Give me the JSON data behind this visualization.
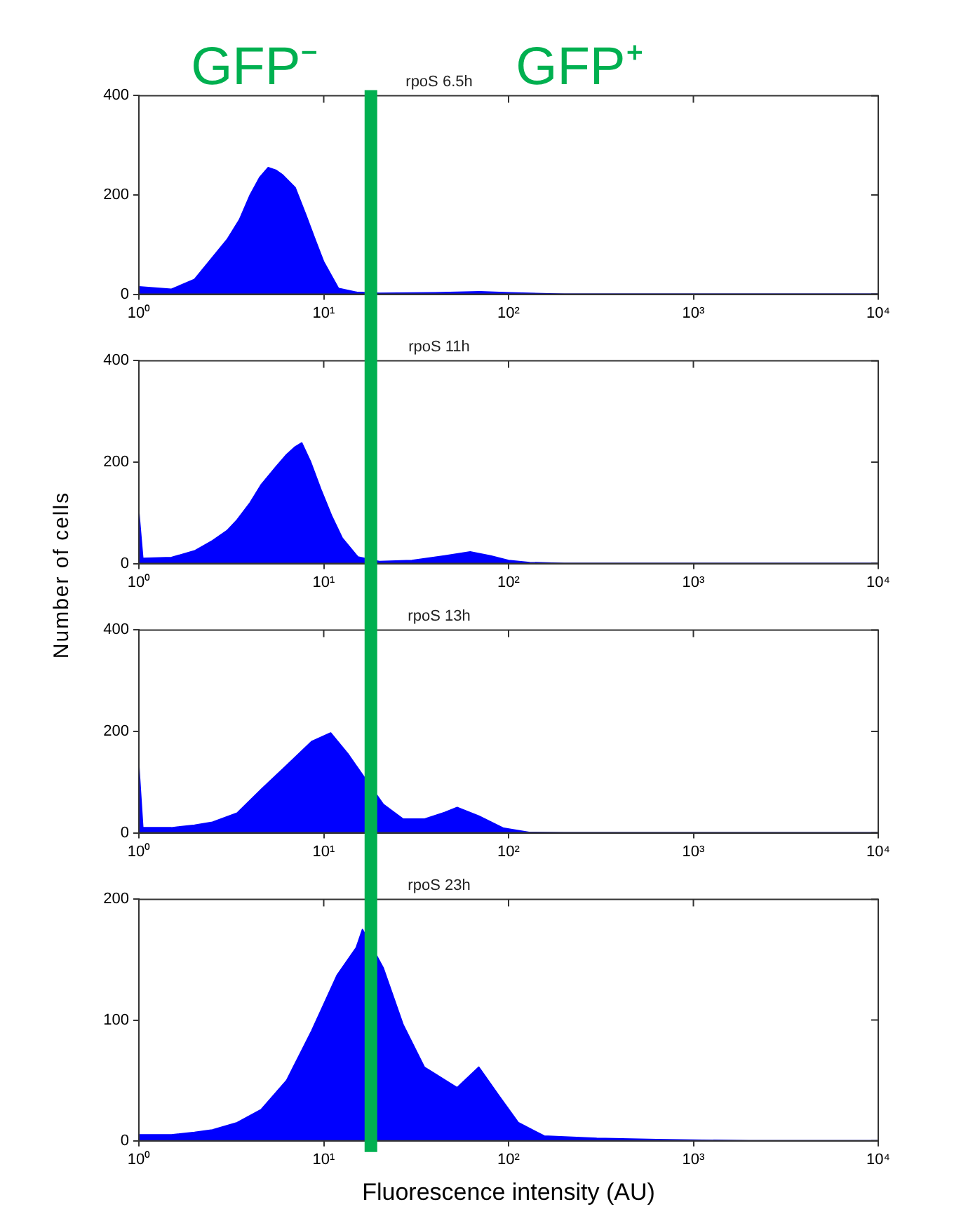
{
  "chart_data": [
    {
      "type": "area",
      "title": "rpoS 6.5h",
      "annotations": [
        "GFP⁻",
        "GFP⁺"
      ],
      "color": "#0000ff",
      "log": "x",
      "grid": false,
      "x": [
        1,
        1.5,
        2,
        2.5,
        3,
        3.5,
        4,
        4.5,
        5,
        5.5,
        6,
        7,
        8,
        9,
        10,
        12,
        15,
        20,
        40,
        70,
        100,
        200,
        10000
      ],
      "values": [
        15,
        10,
        30,
        74,
        110,
        150,
        200,
        235,
        255,
        250,
        240,
        215,
        160,
        109,
        65,
        12,
        4,
        2,
        3,
        5,
        3,
        0,
        0
      ],
      "xlim": [
        1,
        10000
      ],
      "xticks": [
        {
          "value": 1,
          "label": "10⁰"
        },
        {
          "value": 10,
          "label": "10¹"
        },
        {
          "value": 100,
          "label": "10²"
        },
        {
          "value": 1000,
          "label": "10³"
        },
        {
          "value": 10000,
          "label": "10⁴"
        }
      ],
      "ylim": [
        0,
        400
      ],
      "yticks": [
        0,
        200,
        400
      ],
      "ref_lines": [
        {
          "axis": "x",
          "value": 18,
          "color": "#00b050"
        }
      ]
    },
    {
      "type": "area",
      "title": "rpoS 11h",
      "ylabel": "Number of cells",
      "color": "#0000ff",
      "log": "x",
      "grid": false,
      "x": [
        1,
        1.05,
        1.5,
        2,
        2.5,
        3,
        3.4,
        4,
        4.6,
        5.5,
        6.3,
        7,
        7.6,
        8.5,
        9.7,
        11,
        12.6,
        15.3,
        20,
        30,
        45,
        62,
        80,
        100,
        130,
        200,
        10000
      ],
      "values": [
        100,
        10,
        12,
        25,
        45,
        65,
        86,
        120,
        156,
        190,
        215,
        230,
        238,
        200,
        144,
        95,
        50,
        13,
        4,
        6,
        15,
        23,
        15,
        6,
        2,
        0,
        0
      ],
      "xlim": [
        1,
        10000
      ],
      "xticks": [
        {
          "value": 1,
          "label": "10⁰"
        },
        {
          "value": 10,
          "label": "10¹"
        },
        {
          "value": 100,
          "label": "10²"
        },
        {
          "value": 1000,
          "label": "10³"
        },
        {
          "value": 10000,
          "label": "10⁴"
        }
      ],
      "ylim": [
        0,
        400
      ],
      "yticks": [
        0,
        200,
        400
      ],
      "ref_lines": [
        {
          "axis": "x",
          "value": 18,
          "color": "#00b050"
        }
      ]
    },
    {
      "type": "area",
      "title": "rpoS 13h",
      "color": "#0000ff",
      "log": "x",
      "grid": false,
      "x": [
        1,
        1.05,
        1.5,
        2,
        2.5,
        3.4,
        4.6,
        6.3,
        8.6,
        10.9,
        13.5,
        16.6,
        21,
        26.9,
        34.9,
        45,
        52.7,
        69,
        94,
        129,
        200,
        10000
      ],
      "values": [
        130,
        10,
        10,
        15,
        21,
        39,
        86,
        133,
        180,
        197,
        156,
        109,
        56,
        27,
        27,
        40,
        50,
        33,
        9,
        1,
        0,
        0
      ],
      "xlim": [
        1,
        10000
      ],
      "xticks": [
        {
          "value": 1,
          "label": "10⁰"
        },
        {
          "value": 10,
          "label": "10¹"
        },
        {
          "value": 100,
          "label": "10²"
        },
        {
          "value": 1000,
          "label": "10³"
        },
        {
          "value": 10000,
          "label": "10⁴"
        }
      ],
      "ylim": [
        0,
        400
      ],
      "yticks": [
        0,
        200,
        400
      ],
      "ref_lines": [
        {
          "axis": "x",
          "value": 18,
          "color": "#00b050"
        }
      ]
    },
    {
      "type": "area",
      "title": "rpoS 23h",
      "xlabel": "Fluorescence intensity (AU)",
      "color": "#0000ff",
      "log": "x",
      "grid": false,
      "x": [
        1,
        1.5,
        2,
        2.5,
        3.4,
        4.6,
        6.3,
        8.6,
        11.8,
        15,
        16.2,
        21,
        26.9,
        35,
        52.7,
        69,
        88,
        113,
        156,
        300,
        630,
        2000,
        10000
      ],
      "values": [
        5,
        5,
        7,
        9,
        15,
        26,
        50,
        91,
        137,
        160,
        175,
        143,
        96,
        61,
        44,
        61,
        38,
        15,
        4,
        2,
        1,
        0,
        0
      ],
      "xlim": [
        1,
        10000
      ],
      "xticks": [
        {
          "value": 1,
          "label": "10⁰"
        },
        {
          "value": 10,
          "label": "10¹"
        },
        {
          "value": 100,
          "label": "10²"
        },
        {
          "value": 1000,
          "label": "10³"
        },
        {
          "value": 10000,
          "label": "10⁴"
        }
      ],
      "ylim": [
        0,
        200
      ],
      "yticks": [
        0,
        100,
        200
      ],
      "ref_lines": [
        {
          "axis": "x",
          "value": 18,
          "color": "#00b050"
        }
      ]
    }
  ]
}
